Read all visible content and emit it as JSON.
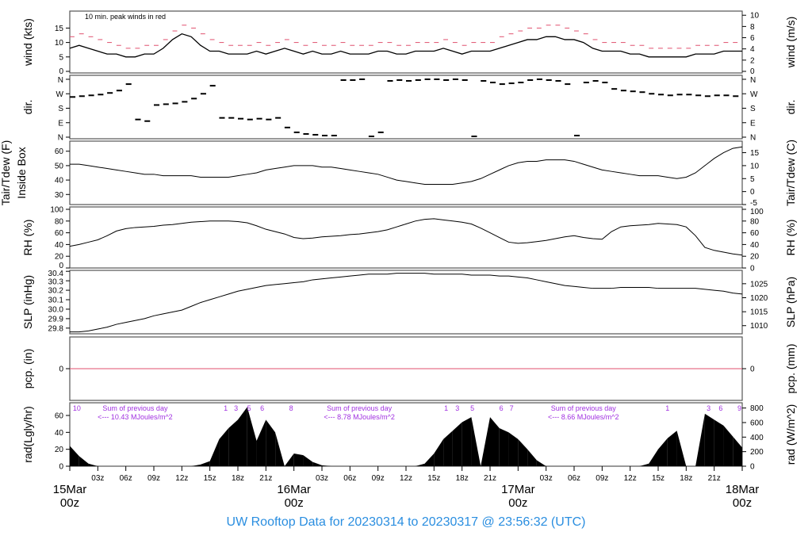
{
  "title": "UW Rooftop Data for 20230314  to  20230317 @ 23:56:32  (UTC)",
  "colors": {
    "line": "#000000",
    "peak": "#e0506e",
    "date": "#e0506e",
    "annot": "#a030e0",
    "title": "#2a8ee0",
    "frame": "#555555"
  },
  "chart_data": [
    {
      "type": "line",
      "id": "wind",
      "ylabel": "wind (kts)",
      "ylabel_right": "wind (m/s)",
      "annotation": "10 min. peak winds in red",
      "ylim": [
        0,
        19.5
      ],
      "yticks": [
        "0",
        "5",
        "10",
        "15"
      ],
      "yticks_vals": [
        0,
        5,
        10,
        15
      ],
      "right_ticks": [
        "0",
        "2",
        "4",
        "6",
        "8",
        "10"
      ],
      "right_vals": [
        0,
        3.89,
        7.78,
        11.66,
        15.55,
        19.44
      ],
      "series": [
        {
          "values": [
            8,
            9,
            8,
            7,
            6,
            6,
            5,
            5,
            6,
            6,
            8,
            11,
            13,
            12,
            9,
            7,
            7,
            6,
            6,
            6,
            7,
            6,
            7,
            8,
            7,
            6,
            7,
            6,
            6,
            7,
            6,
            6,
            6,
            7,
            7,
            6,
            6,
            7,
            7,
            7,
            8,
            7,
            6,
            7,
            7,
            7,
            8,
            9,
            10,
            11,
            11,
            12,
            12,
            11,
            11,
            10,
            8,
            7,
            7,
            7,
            6,
            6,
            5,
            5,
            5,
            5,
            5,
            6,
            6,
            6,
            7,
            7,
            7
          ]
        },
        {
          "values": [
            12,
            13,
            12,
            11,
            10,
            9,
            8,
            8,
            9,
            9,
            11,
            14,
            16,
            15,
            13,
            11,
            10,
            9,
            9,
            9,
            10,
            9,
            10,
            11,
            10,
            9,
            10,
            9,
            9,
            10,
            9,
            9,
            9,
            10,
            10,
            9,
            9,
            10,
            10,
            10,
            11,
            10,
            9,
            10,
            10,
            10,
            12,
            13,
            14,
            15,
            15,
            16,
            16,
            15,
            14,
            13,
            11,
            10,
            10,
            10,
            9,
            9,
            8,
            8,
            8,
            8,
            8,
            9,
            9,
            9,
            10,
            10,
            10
          ]
        }
      ]
    },
    {
      "type": "scatter",
      "id": "dir",
      "ylabel": "dir.",
      "ylabel_right": "dir.",
      "ylim": [
        0,
        360
      ],
      "yticks": [
        "N",
        "E",
        "S",
        "W",
        "N"
      ],
      "yticks_vals": [
        0,
        90,
        180,
        270,
        360
      ],
      "values": [
        250,
        255,
        260,
        265,
        275,
        290,
        330,
        110,
        100,
        200,
        205,
        210,
        220,
        240,
        270,
        320,
        120,
        120,
        115,
        110,
        115,
        110,
        120,
        60,
        30,
        20,
        15,
        10,
        10,
        355,
        355,
        360,
        5,
        30,
        350,
        355,
        350,
        355,
        360,
        360,
        355,
        360,
        355,
        5,
        350,
        340,
        330,
        335,
        340,
        355,
        360,
        355,
        350,
        330,
        10,
        340,
        350,
        340,
        300,
        290,
        285,
        280,
        270,
        265,
        260,
        265,
        265,
        260,
        255,
        260,
        260,
        255,
        255
      ]
    },
    {
      "type": "line",
      "id": "temp",
      "ylabel": "Tair/Tdew (F)\nInside Box",
      "ylabel_right": "Tair/Tdew (C)",
      "ylim": [
        23,
        67
      ],
      "yticks": [
        "30",
        "40",
        "50",
        "60"
      ],
      "yticks_vals": [
        30,
        40,
        50,
        60
      ],
      "right_ticks": [
        "-5",
        "0",
        "5",
        "10",
        "15"
      ],
      "right_vals": [
        23,
        32,
        41,
        50,
        59
      ],
      "values": [
        51,
        51,
        50,
        49,
        48,
        47,
        46,
        45,
        44,
        44,
        43,
        43,
        43,
        43,
        42,
        42,
        42,
        42,
        43,
        44,
        45,
        47,
        48,
        49,
        50,
        50,
        50,
        49,
        49,
        48,
        47,
        46,
        45,
        44,
        42,
        40,
        39,
        38,
        37,
        37,
        37,
        37,
        38,
        39,
        41,
        44,
        47,
        50,
        52,
        53,
        53,
        54,
        54,
        54,
        53,
        51,
        49,
        47,
        46,
        45,
        44,
        43,
        43,
        43,
        42,
        41,
        42,
        45,
        50,
        55,
        59,
        62,
        63
      ]
    },
    {
      "type": "line",
      "id": "rh",
      "ylabel": "RH (%)",
      "ylabel_right": "RH (%)",
      "ylim": [
        0,
        100
      ],
      "yticks": [
        "0",
        "20",
        "40",
        "60",
        "80",
        "100"
      ],
      "yticks_vals": [
        0,
        20,
        40,
        60,
        80,
        100
      ],
      "right_ticks": [
        "0",
        "20",
        "40",
        "60",
        "80",
        "100"
      ],
      "right_vals": [
        0,
        20,
        40,
        60,
        80,
        100
      ],
      "values": [
        37,
        40,
        44,
        48,
        55,
        63,
        67,
        69,
        70,
        71,
        73,
        74,
        76,
        78,
        79,
        80,
        80,
        80,
        79,
        77,
        72,
        66,
        62,
        58,
        52,
        50,
        51,
        53,
        54,
        55,
        57,
        58,
        60,
        62,
        65,
        70,
        75,
        80,
        83,
        84,
        82,
        80,
        78,
        75,
        68,
        60,
        52,
        44,
        42,
        43,
        45,
        47,
        50,
        53,
        55,
        52,
        50,
        49,
        62,
        70,
        72,
        73,
        74,
        76,
        75,
        74,
        70,
        55,
        35,
        30,
        27,
        24,
        22
      ]
    },
    {
      "type": "line",
      "id": "slp",
      "ylabel": "SLP (inHg)",
      "ylabel_right": "SLP (hPa)",
      "ylim": [
        29.74,
        30.41
      ],
      "yticks": [
        "29.8",
        "29.9",
        "30.0",
        "30.1",
        "30.2",
        "30.3",
        "30.4"
      ],
      "yticks_vals": [
        29.8,
        29.9,
        30.0,
        30.1,
        30.2,
        30.3,
        30.4
      ],
      "right_ticks": [
        "1010",
        "1015",
        "1020",
        "1025"
      ],
      "right_vals": [
        29.826,
        29.973,
        30.121,
        30.269
      ],
      "values": [
        29.76,
        29.76,
        29.77,
        29.79,
        29.81,
        29.84,
        29.86,
        29.88,
        29.9,
        29.93,
        29.95,
        29.97,
        29.99,
        30.03,
        30.07,
        30.1,
        30.13,
        30.16,
        30.19,
        30.21,
        30.23,
        30.25,
        30.26,
        30.27,
        30.28,
        30.29,
        30.31,
        30.32,
        30.33,
        30.34,
        30.35,
        30.36,
        30.37,
        30.37,
        30.37,
        30.38,
        30.38,
        30.38,
        30.38,
        30.37,
        30.37,
        30.37,
        30.37,
        30.36,
        30.36,
        30.36,
        30.35,
        30.35,
        30.34,
        30.33,
        30.31,
        30.29,
        30.27,
        30.25,
        30.24,
        30.23,
        30.22,
        30.22,
        30.22,
        30.23,
        30.23,
        30.23,
        30.23,
        30.22,
        30.22,
        30.22,
        30.22,
        30.22,
        30.21,
        30.2,
        30.19,
        30.17,
        30.16
      ]
    },
    {
      "type": "line",
      "id": "pcp",
      "ylabel": "pcp. (in)",
      "ylabel_right": "pcp. (mm)",
      "ylim": [
        -1,
        1
      ],
      "yticks": [
        "0"
      ],
      "yticks_vals": [
        0
      ],
      "right_ticks": [
        "0"
      ],
      "right_vals": [
        0
      ],
      "values": [
        0,
        0
      ]
    },
    {
      "type": "area",
      "id": "rad",
      "ylabel": "rad(Lgly/hr)",
      "ylabel_right": "rad (W/m^2)",
      "ylim": [
        0,
        75
      ],
      "yticks": [
        "0",
        "20",
        "40",
        "60"
      ],
      "yticks_vals": [
        0,
        20,
        40,
        60
      ],
      "right_ticks": [
        "0",
        "200",
        "400",
        "600",
        "800"
      ],
      "right_vals": [
        0,
        17.2,
        34.4,
        51.6,
        68.8
      ],
      "values": [
        24,
        12,
        3,
        0,
        0,
        0,
        0,
        0,
        0,
        0,
        0,
        0,
        0,
        0,
        2,
        6,
        32,
        45,
        55,
        70,
        30,
        55,
        40,
        0,
        15,
        13,
        5,
        1,
        0,
        0,
        0,
        0,
        0,
        0,
        0,
        0,
        0,
        0,
        3,
        15,
        32,
        42,
        52,
        58,
        0,
        58,
        45,
        40,
        32,
        20,
        7,
        0,
        0,
        0,
        0,
        0,
        0,
        0,
        0,
        0,
        0,
        0,
        3,
        20,
        33,
        42,
        0,
        0,
        62,
        55,
        48,
        35,
        22
      ],
      "hour_labels": [
        {
          "h": 0.75,
          "t": "10"
        },
        {
          "h": 16.7,
          "t": "1"
        },
        {
          "h": 17.8,
          "t": "3"
        },
        {
          "h": 19.2,
          "t": "5"
        },
        {
          "h": 20.6,
          "t": "6"
        },
        {
          "h": 23.7,
          "t": "8"
        },
        {
          "h": 40.3,
          "t": "1"
        },
        {
          "h": 41.5,
          "t": "3"
        },
        {
          "h": 43.1,
          "t": "5"
        },
        {
          "h": 46.2,
          "t": "6"
        },
        {
          "h": 47.3,
          "t": "7"
        },
        {
          "h": 64,
          "t": "1"
        },
        {
          "h": 68.4,
          "t": "3"
        },
        {
          "h": 69.7,
          "t": "6"
        },
        {
          "h": 71.7,
          "t": "9"
        }
      ],
      "sums": [
        {
          "h": 7,
          "l1": "Sum of previous day",
          "l2": "<--- 10.43 MJoules/m^2"
        },
        {
          "h": 31,
          "l1": "Sum of previous day",
          "l2": "<--- 8.78 MJoules/m^2"
        },
        {
          "h": 55,
          "l1": "Sum of previous day",
          "l2": "<--- 8.66 MJoules/m^2"
        }
      ]
    }
  ],
  "xaxis": {
    "range_hours": [
      0,
      72
    ],
    "hour_ticks": [
      "03z",
      "06z",
      "09z",
      "12z",
      "15z",
      "18z",
      "21z"
    ],
    "dates": [
      {
        "h": 0,
        "d": "15Mar",
        "z": "00z"
      },
      {
        "h": 24,
        "d": "16Mar",
        "z": "00z"
      },
      {
        "h": 48,
        "d": "17Mar",
        "z": "00z"
      },
      {
        "h": 72,
        "d": "18Mar",
        "z": "00z"
      }
    ]
  }
}
